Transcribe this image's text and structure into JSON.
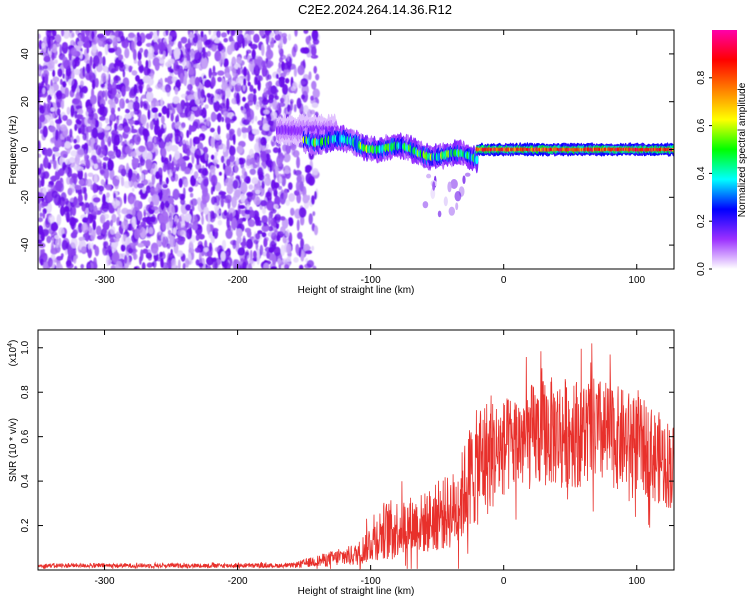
{
  "title": "C2E2.2024.264.14.36.R12",
  "chart_data": [
    {
      "type": "heatmap",
      "title": "C2E2.2024.264.14.36.R12",
      "xlabel": "Height of straight line (km)",
      "ylabel": "Frequency (Hz)",
      "xlim": [
        -350,
        128
      ],
      "ylim": [
        -50,
        50
      ],
      "xticks": [
        -300,
        -200,
        -100,
        0,
        100
      ],
      "yticks": [
        -40,
        -20,
        0,
        20,
        40
      ],
      "colorbar": {
        "label": "Normalized spectral amplitude",
        "range": [
          0,
          1
        ],
        "ticks": [
          0.0,
          0.2,
          0.4,
          0.6,
          0.8
        ],
        "tick_labels": [
          "0.0",
          "0.2",
          "0.4",
          "0.6",
          "0.8"
        ],
        "colormap": [
          "#ffffff",
          "#9b30ff",
          "#0000ff",
          "#00ffff",
          "#00ff00",
          "#ffff00",
          "#ff8000",
          "#ff0000",
          "#ff00aa"
        ]
      },
      "regions": [
        {
          "name": "noise",
          "x_range": [
            -350,
            -140
          ],
          "freq_range": [
            -50,
            50
          ],
          "amplitude": 0.1
        },
        {
          "name": "transition",
          "x_range": [
            -170,
            -125
          ],
          "freq_center": 8,
          "freq_halfwidth": 6,
          "amplitude": 0.15
        },
        {
          "name": "drift-band",
          "x_range": [
            -150,
            -20
          ],
          "freq_center": [
            5,
            -4
          ],
          "freq_halfwidth": 5,
          "amplitude": 0.45
        },
        {
          "name": "tail",
          "x_range": [
            -60,
            -25
          ],
          "freq_range": [
            -28,
            -10
          ],
          "amplitude": 0.08
        },
        {
          "name": "carrier",
          "x_range": [
            -20,
            128
          ],
          "freq_center": 0,
          "freq_halfwidth": 2.5,
          "amplitude": 0.95
        }
      ]
    },
    {
      "type": "line",
      "xlabel": "Height of straight line (km)",
      "ylabel": "SNR (10 * v/v)",
      "scale_label": "(x10",
      "scale_exponent": "4",
      "xlim": [
        -350,
        128
      ],
      "ylim": [
        0,
        1.08
      ],
      "xticks": [
        -300,
        -200,
        -100,
        0,
        100
      ],
      "yticks": [
        0.2,
        0.4,
        0.6,
        0.8,
        1.0
      ],
      "series": [
        {
          "name": "SNR",
          "color": "#e8302b",
          "envelope": [
            {
              "x": -350,
              "mean": 0.02,
              "spread": 0.01
            },
            {
              "x": -160,
              "mean": 0.02,
              "spread": 0.01
            },
            {
              "x": -110,
              "mean": 0.07,
              "spread": 0.05
            },
            {
              "x": -90,
              "mean": 0.18,
              "spread": 0.13
            },
            {
              "x": -60,
              "mean": 0.21,
              "spread": 0.14
            },
            {
              "x": -35,
              "mean": 0.28,
              "spread": 0.18
            },
            {
              "x": -25,
              "mean": 0.42,
              "spread": 0.25
            },
            {
              "x": -15,
              "mean": 0.5,
              "spread": 0.28
            },
            {
              "x": 0,
              "mean": 0.55,
              "spread": 0.22
            },
            {
              "x": 30,
              "mean": 0.62,
              "spread": 0.25
            },
            {
              "x": 70,
              "mean": 0.62,
              "spread": 0.25
            },
            {
              "x": 100,
              "mean": 0.57,
              "spread": 0.22
            },
            {
              "x": 128,
              "mean": 0.46,
              "spread": 0.2
            }
          ]
        }
      ]
    }
  ]
}
